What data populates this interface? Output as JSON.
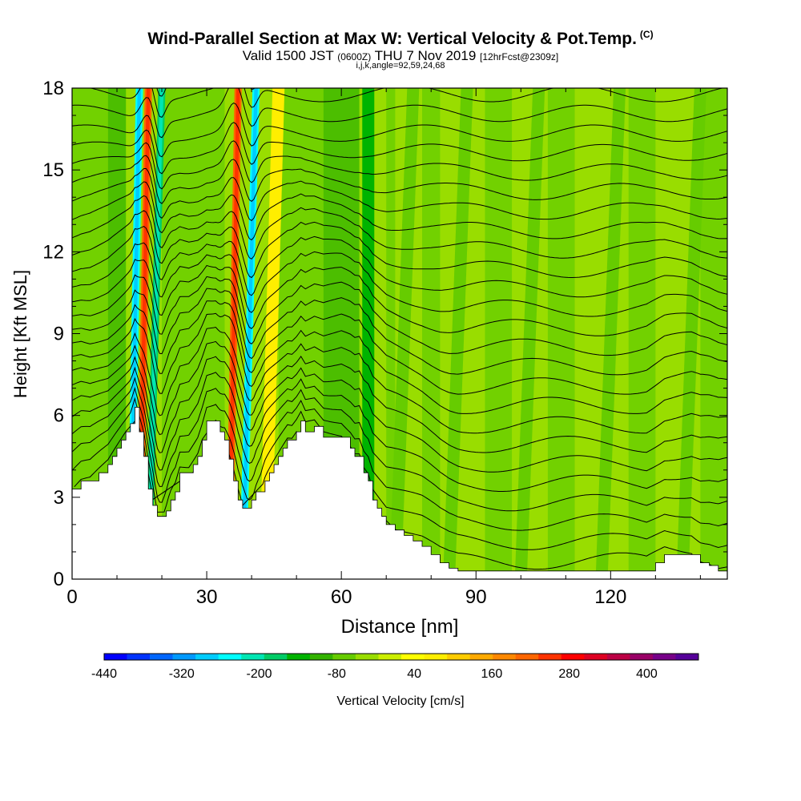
{
  "header": {
    "title": "Wind-Parallel Section at Max W: Vertical Velocity & Pot.Temp.",
    "copyright": "(C)",
    "subtitle_main": "Valid 1500 JST",
    "subtitle_utc": "(0600Z)",
    "subtitle_date": "THU 7 Nov 2019",
    "subtitle_run": "[12hrFcst@2309z]",
    "params": "i,j,k,angle=92,59,24,68"
  },
  "chart_data": {
    "type": "heatmap",
    "xlabel": "Distance [nm]",
    "ylabel": "Height [Kft MSL]",
    "xlim": [
      0,
      146
    ],
    "ylim": [
      0,
      18
    ],
    "x_ticks": [
      0,
      30,
      60,
      90,
      120
    ],
    "y_ticks": [
      0,
      3,
      6,
      9,
      12,
      15,
      18
    ],
    "x_tick_labels": [
      "0",
      "30",
      "60",
      "90",
      "120"
    ],
    "y_tick_labels": [
      "0",
      "3",
      "6",
      "9",
      "12",
      "15",
      "18"
    ],
    "colorbar": {
      "label": "Vertical Velocity [cm/s]",
      "min": -440,
      "max": 480,
      "step": 40,
      "tick_values": [
        -440,
        -320,
        -200,
        -80,
        40,
        160,
        280,
        400
      ],
      "tick_labels": [
        "-440",
        "-320",
        "-200",
        "-80",
        "40",
        "160",
        "280",
        "400"
      ],
      "colors": [
        "#0000ff",
        "#0033ff",
        "#0066ff",
        "#0099ff",
        "#00ccff",
        "#00ffff",
        "#00e6b3",
        "#00cc66",
        "#00b300",
        "#33b300",
        "#66cc00",
        "#99dd00",
        "#ccee00",
        "#ffff00",
        "#ffee00",
        "#ffcc00",
        "#ffaa00",
        "#ff8800",
        "#ff6600",
        "#ff3300",
        "#ff0000",
        "#dd0022",
        "#bb0044",
        "#990066",
        "#770088",
        "#550099"
      ]
    },
    "terrain_profile": {
      "x": [
        0,
        2,
        4,
        6,
        8,
        9,
        10,
        11,
        12,
        13,
        14,
        15,
        16,
        17,
        18,
        19,
        20,
        21,
        22,
        23,
        24,
        25,
        26,
        27,
        28,
        29,
        30,
        31,
        32,
        33,
        34,
        35,
        36,
        37,
        38,
        39,
        40,
        41,
        42,
        43,
        44,
        45,
        46,
        47,
        48,
        49,
        50,
        51,
        52,
        54,
        56,
        58,
        60,
        62,
        63,
        64,
        65,
        66,
        67,
        68,
        69,
        70,
        72,
        74,
        76,
        78,
        80,
        82,
        84,
        86,
        88,
        90,
        92,
        94,
        96,
        98,
        100,
        102,
        104,
        106,
        108,
        110,
        112,
        114,
        116,
        118,
        120,
        122,
        124,
        126,
        128,
        130,
        132,
        134,
        136,
        138,
        140,
        142,
        144,
        146
      ],
      "y_kft": [
        3.3,
        3.6,
        3.6,
        3.9,
        4.2,
        4.5,
        4.8,
        5.1,
        5.4,
        5.7,
        6.3,
        5.4,
        4.5,
        3.3,
        2.7,
        2.3,
        2.3,
        2.5,
        2.9,
        3.2,
        3.9,
        3.9,
        3.9,
        4.2,
        4.5,
        5.1,
        5.8,
        5.8,
        5.8,
        5.4,
        5.1,
        4.4,
        3.6,
        2.9,
        2.6,
        2.6,
        2.9,
        3.2,
        3.2,
        3.6,
        3.9,
        4.2,
        4.5,
        4.8,
        5.1,
        5.1,
        5.4,
        5.8,
        5.4,
        5.6,
        5.2,
        5.2,
        5.2,
        4.8,
        4.5,
        4.5,
        3.9,
        3.6,
        2.9,
        2.6,
        2.3,
        2.0,
        1.8,
        1.6,
        1.4,
        1.2,
        0.9,
        0.6,
        0.4,
        0.3,
        0.3,
        0.3,
        0.3,
        0.3,
        0.3,
        0.3,
        0.3,
        0.3,
        0.3,
        0.3,
        0.3,
        0.3,
        0.3,
        0.3,
        0.3,
        0.3,
        0.3,
        0.3,
        0.3,
        0.3,
        0.3,
        0.6,
        0.9,
        0.9,
        0.9,
        0.9,
        0.6,
        0.5,
        0.3,
        0.3
      ]
    },
    "vertical_velocity_bands": [
      {
        "x_bottom": 13,
        "x_top": 15,
        "w_cm_s": -240
      },
      {
        "x_bottom": 15,
        "x_top": 17,
        "w_cm_s": 300
      },
      {
        "x_bottom": 17,
        "x_top": 20,
        "w_cm_s": -160
      },
      {
        "x_bottom": 35,
        "x_top": 37,
        "w_cm_s": 300
      },
      {
        "x_bottom": 38,
        "x_top": 41,
        "w_cm_s": -240
      },
      {
        "x_bottom": 43,
        "x_top": 46,
        "w_cm_s": 120
      },
      {
        "x_bottom": 66,
        "x_top": 66,
        "w_cm_s": -100
      },
      {
        "x_bottom": 72,
        "x_top": 76,
        "w_cm_s": -40
      },
      {
        "x_bottom": 84,
        "x_top": 88,
        "w_cm_s": -40
      },
      {
        "x_bottom": 100,
        "x_top": 104,
        "w_cm_s": -40
      },
      {
        "x_bottom": 118,
        "x_top": 122,
        "w_cm_s": -40
      },
      {
        "x_bottom": 136,
        "x_top": 140,
        "w_cm_s": -40
      }
    ],
    "grid": false,
    "legend": "bottom colorbar"
  }
}
